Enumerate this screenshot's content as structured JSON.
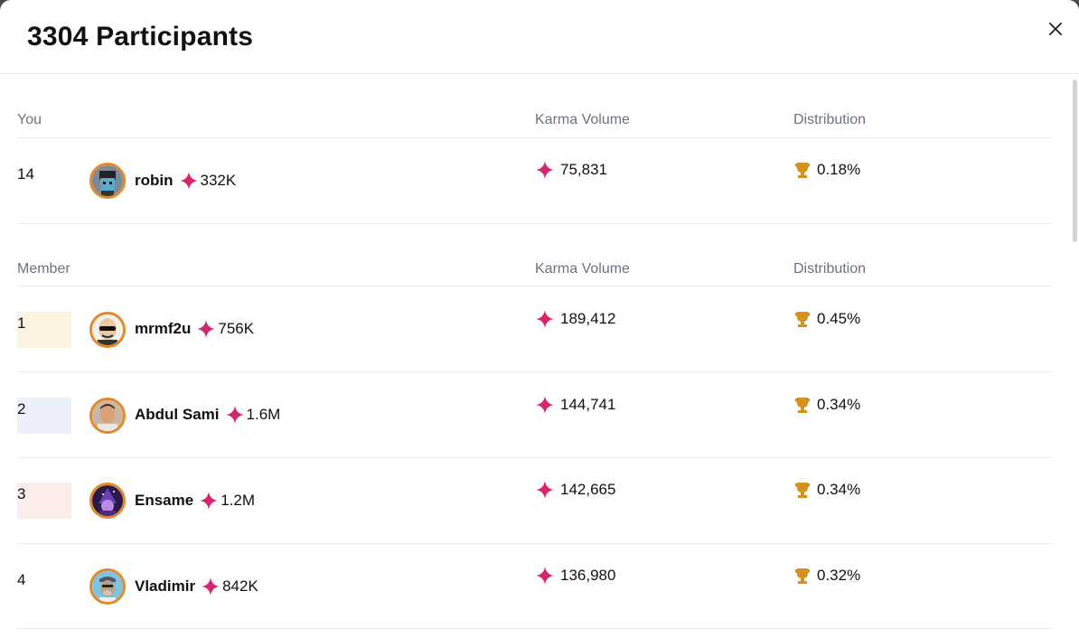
{
  "title": "3304 Participants",
  "colors": {
    "karma": "#d6246e",
    "trophy": "#d4911e",
    "avatar_border": "#e4892a"
  },
  "you_section": {
    "headers": {
      "member": "You",
      "karma": "Karma Volume",
      "distribution": "Distribution"
    },
    "row": {
      "rank": "14",
      "name": "robin",
      "karma": "332K",
      "volume": "75,831",
      "distribution": "0.18%",
      "avatar": "robot-avatar"
    }
  },
  "members_section": {
    "headers": {
      "member": "Member",
      "karma": "Karma Volume",
      "distribution": "Distribution"
    },
    "rows": [
      {
        "rank": "1",
        "name": "mrmf2u",
        "karma": "756K",
        "volume": "189,412",
        "distribution": "0.45%",
        "rank_bg": "#fdf3e2"
      },
      {
        "rank": "2",
        "name": "Abdul Sami",
        "karma": "1.6M",
        "volume": "144,741",
        "distribution": "0.34%",
        "rank_bg": "#ebf0fb"
      },
      {
        "rank": "3",
        "name": "Ensame",
        "karma": "1.2M",
        "volume": "142,665",
        "distribution": "0.34%",
        "rank_bg": "#fcecea"
      },
      {
        "rank": "4",
        "name": "Vladimir",
        "karma": "842K",
        "volume": "136,980",
        "distribution": "0.32%",
        "rank_bg": ""
      }
    ]
  }
}
